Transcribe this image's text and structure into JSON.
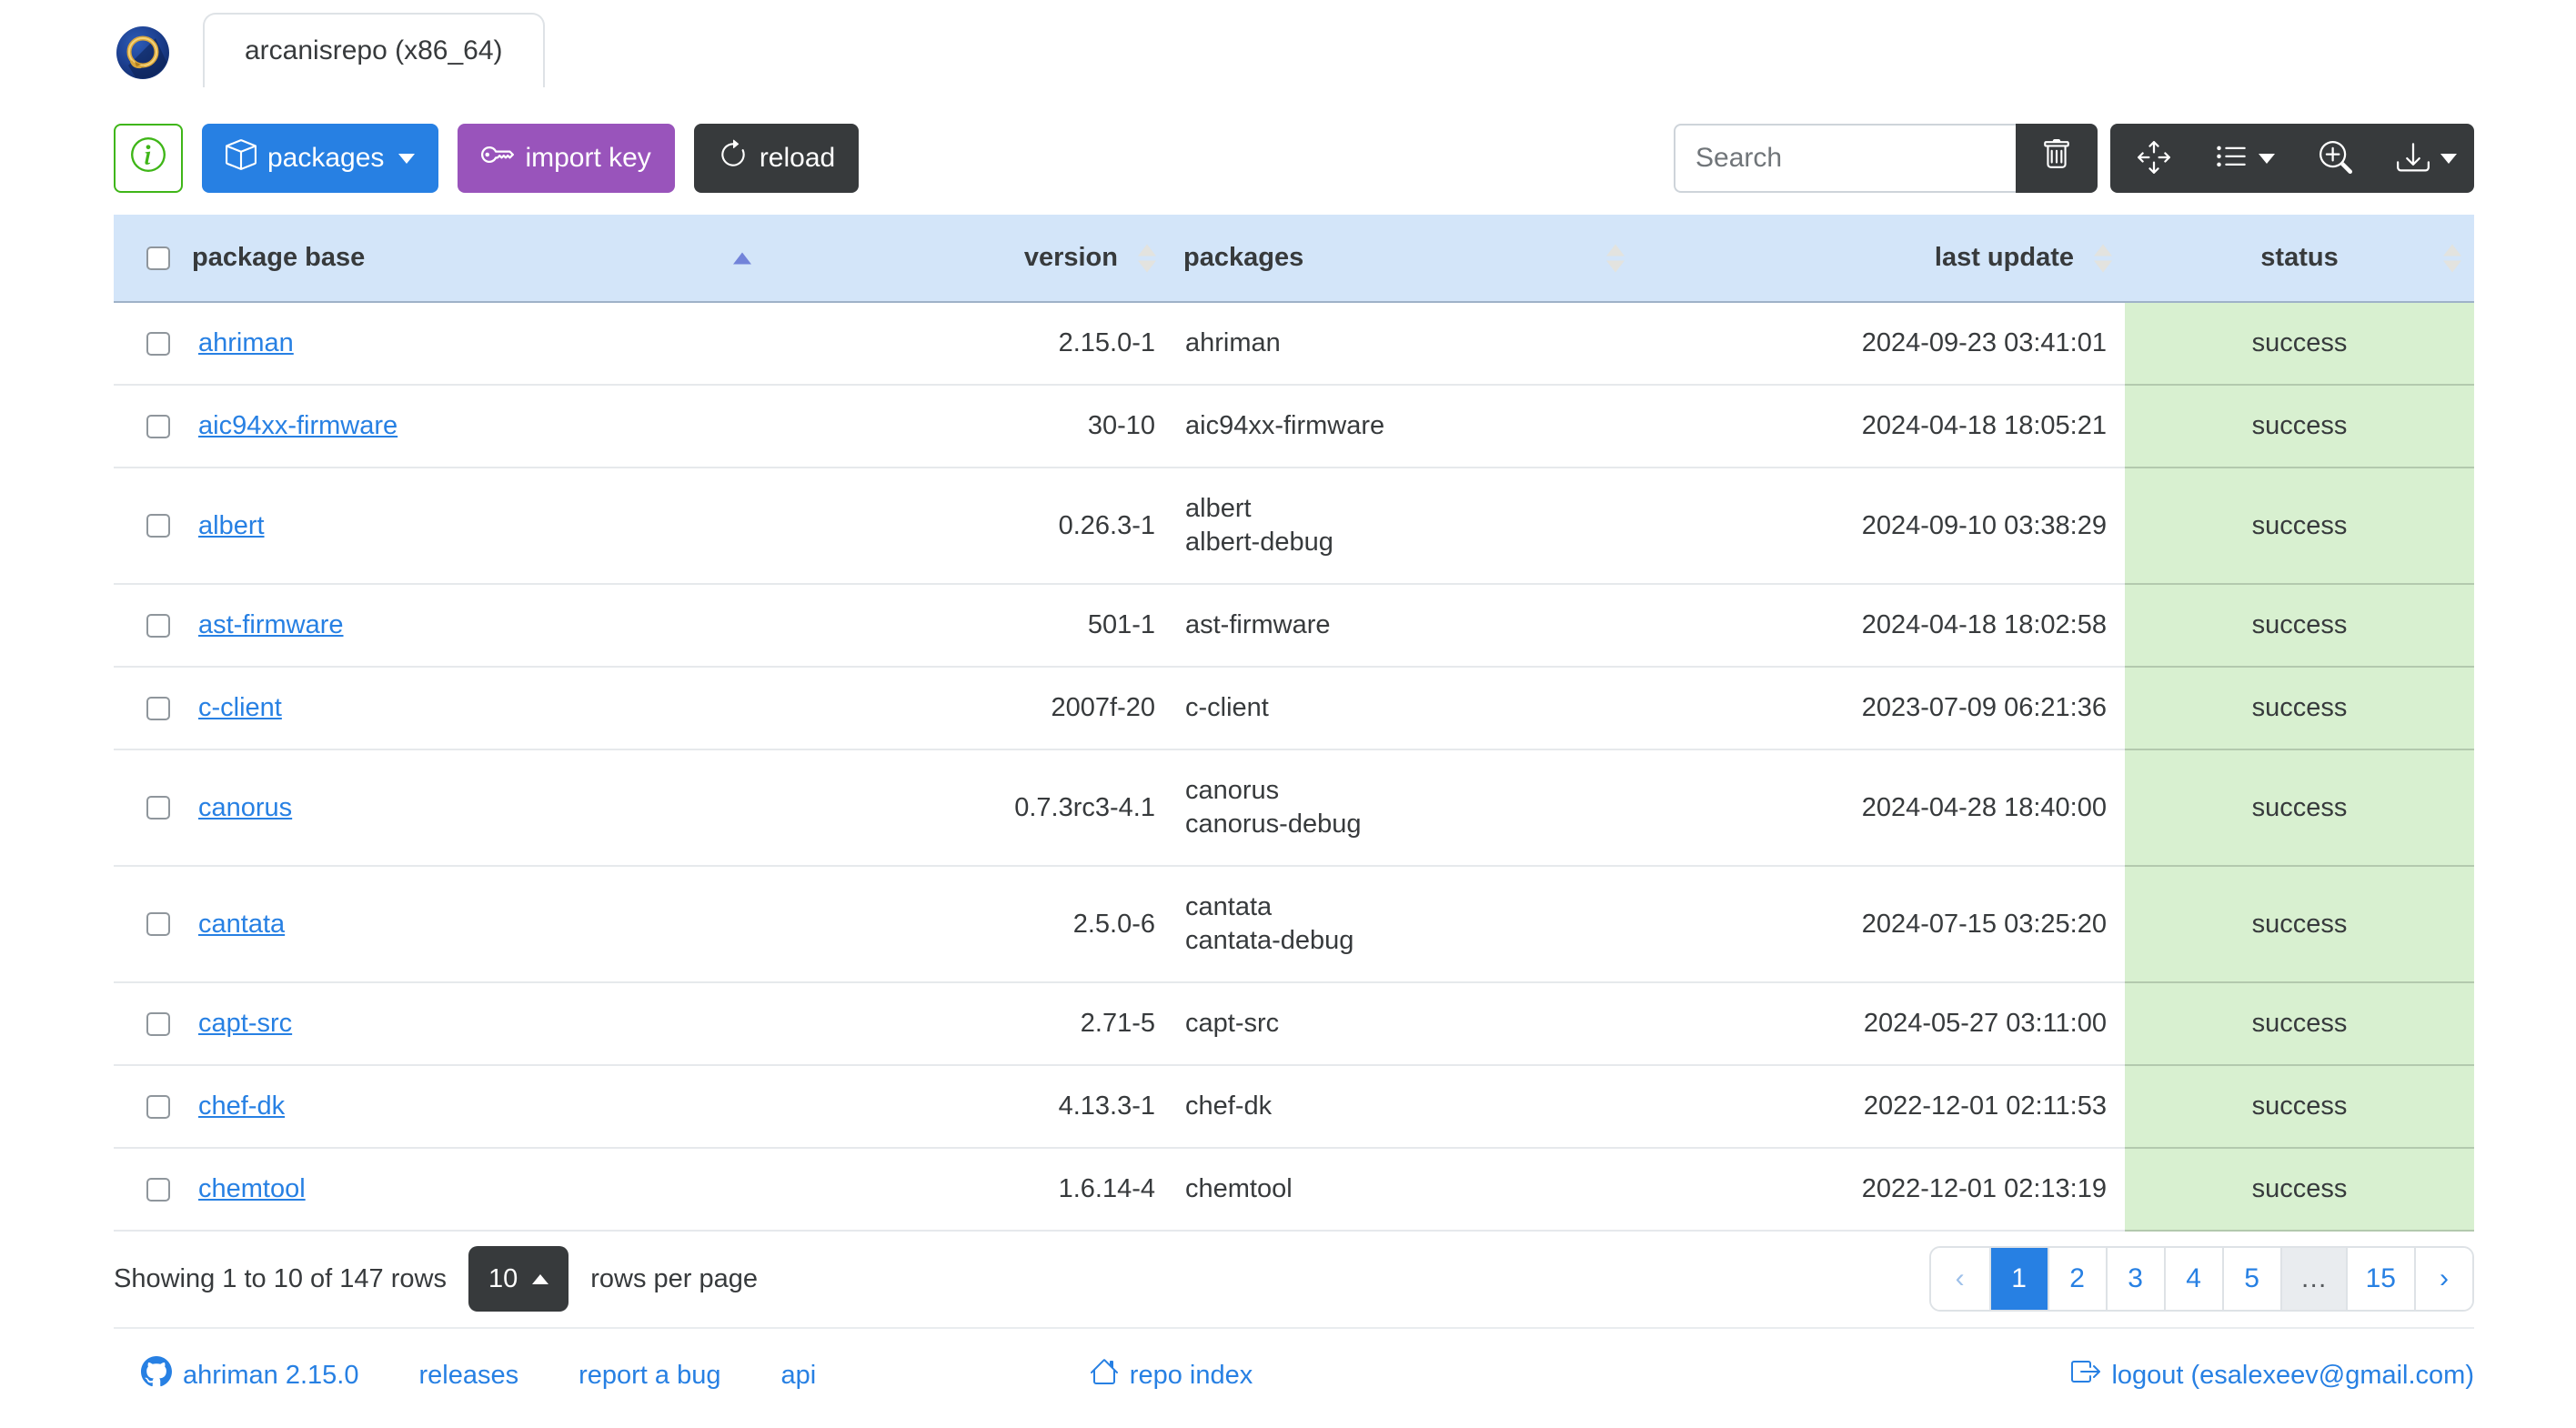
{
  "window": {
    "tab_title": "arcanisrepo (x86_64)"
  },
  "toolbar": {
    "info_button": "info",
    "packages_label": "packages",
    "import_key_label": "import key",
    "reload_label": "reload",
    "search_placeholder": "Search",
    "icons": [
      "trash-icon",
      "arrows-move-icon",
      "list-columns-icon",
      "zoom-in-icon",
      "download-icon"
    ]
  },
  "colors": {
    "primary": "#2780e3",
    "purple": "#9954bb",
    "dark": "#373a3c",
    "success": "#3fb618",
    "table_header_bg": "#d3e5f9",
    "status_success_bg": "#d8f0d0",
    "link": "#2780e3"
  },
  "table": {
    "columns": [
      {
        "label": "package base",
        "sort": "asc"
      },
      {
        "label": "version",
        "sort": "none"
      },
      {
        "label": "packages",
        "sort": "none"
      },
      {
        "label": "last update",
        "sort": "none"
      },
      {
        "label": "status",
        "sort": "none"
      }
    ],
    "rows": [
      {
        "base": "ahriman",
        "version": "2.15.0-1",
        "packages": "ahriman",
        "last_update": "2024-09-23 03:41:01",
        "status": "success"
      },
      {
        "base": "aic94xx-firmware",
        "version": "30-10",
        "packages": "aic94xx-firmware",
        "last_update": "2024-04-18 18:05:21",
        "status": "success"
      },
      {
        "base": "albert",
        "version": "0.26.3-1",
        "packages": "albert\nalbert-debug",
        "last_update": "2024-09-10 03:38:29",
        "status": "success"
      },
      {
        "base": "ast-firmware",
        "version": "501-1",
        "packages": "ast-firmware",
        "last_update": "2024-04-18 18:02:58",
        "status": "success"
      },
      {
        "base": "c-client",
        "version": "2007f-20",
        "packages": "c-client",
        "last_update": "2023-07-09 06:21:36",
        "status": "success"
      },
      {
        "base": "canorus",
        "version": "0.7.3rc3-4.1",
        "packages": "canorus\ncanorus-debug",
        "last_update": "2024-04-28 18:40:00",
        "status": "success"
      },
      {
        "base": "cantata",
        "version": "2.5.0-6",
        "packages": "cantata\ncantata-debug",
        "last_update": "2024-07-15 03:25:20",
        "status": "success"
      },
      {
        "base": "capt-src",
        "version": "2.71-5",
        "packages": "capt-src",
        "last_update": "2024-05-27 03:11:00",
        "status": "success"
      },
      {
        "base": "chef-dk",
        "version": "4.13.3-1",
        "packages": "chef-dk",
        "last_update": "2022-12-01 02:11:53",
        "status": "success"
      },
      {
        "base": "chemtool",
        "version": "1.6.14-4",
        "packages": "chemtool",
        "last_update": "2022-12-01 02:13:19",
        "status": "success"
      }
    ]
  },
  "pagination": {
    "summary": "Showing 1 to 10 of 147 rows",
    "page_size": "10",
    "rows_per_page_label": "rows per page",
    "items": [
      {
        "label": "‹",
        "type": "prev"
      },
      {
        "label": "1",
        "type": "page",
        "active": true
      },
      {
        "label": "2",
        "type": "page"
      },
      {
        "label": "3",
        "type": "page"
      },
      {
        "label": "4",
        "type": "page"
      },
      {
        "label": "5",
        "type": "page"
      },
      {
        "label": "…",
        "type": "ellipsis"
      },
      {
        "label": "15",
        "type": "page"
      },
      {
        "label": "›",
        "type": "next"
      }
    ]
  },
  "footer": {
    "version_link": "ahriman 2.15.0",
    "releases_link": "releases",
    "report_bug_link": "report a bug",
    "api_link": "api",
    "repo_index_link": "repo index",
    "logout_link": "logout (esalexeev@gmail.com)"
  }
}
